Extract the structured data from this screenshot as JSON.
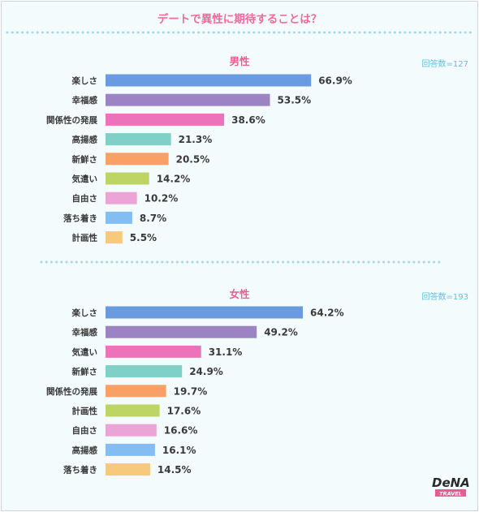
{
  "page_title": "デートで異性に期待することは？",
  "colors": {
    "title": "#f06a9a",
    "section_title": "#ee5d90",
    "respondents": "#5fc0e4",
    "dots": "#9fd9ee",
    "bar_palette": [
      "#6a9be0",
      "#9c84c4",
      "#ec72b9",
      "#7fd0c6",
      "#f8a065",
      "#bcd564",
      "#eca3d5",
      "#84bdf2",
      "#f7c97d"
    ]
  },
  "chart_data": [
    {
      "type": "bar",
      "orientation": "horizontal",
      "title": "男性",
      "respondents_label": "回答数=127",
      "unit": "%",
      "categories": [
        "楽しさ",
        "幸福感",
        "関係性の発展",
        "高揚感",
        "新鮮さ",
        "気遣い",
        "自由さ",
        "落ち着き",
        "計画性"
      ],
      "values": [
        66.9,
        53.5,
        38.6,
        21.3,
        20.5,
        14.2,
        10.2,
        8.7,
        5.5
      ],
      "value_labels": [
        "66.9%",
        "53.5%",
        "38.6%",
        "21.3%",
        "20.5%",
        "14.2%",
        "10.2%",
        "8.7%",
        "5.5%"
      ],
      "bar_colors": [
        "#6a9be0",
        "#9c84c4",
        "#ec72b9",
        "#7fd0c6",
        "#f8a065",
        "#bcd564",
        "#eca3d5",
        "#84bdf2",
        "#f7c97d"
      ],
      "grid": false,
      "legend": false
    },
    {
      "type": "bar",
      "orientation": "horizontal",
      "title": "女性",
      "respondents_label": "回答数=193",
      "unit": "%",
      "categories": [
        "楽しさ",
        "幸福感",
        "気遣い",
        "新鮮さ",
        "関係性の発展",
        "計画性",
        "自由さ",
        "高揚感",
        "落ち着き"
      ],
      "values": [
        64.2,
        49.2,
        31.1,
        24.9,
        19.7,
        17.6,
        16.6,
        16.1,
        14.5
      ],
      "value_labels": [
        "64.2%",
        "49.2%",
        "31.1%",
        "24.9%",
        "19.7%",
        "17.6%",
        "16.6%",
        "16.1%",
        "14.5%"
      ],
      "bar_colors": [
        "#6a9be0",
        "#9c84c4",
        "#ec72b9",
        "#7fd0c6",
        "#f8a065",
        "#bcd564",
        "#eca3d5",
        "#84bdf2",
        "#f7c97d"
      ],
      "grid": false,
      "legend": false
    }
  ],
  "logo": {
    "brand": "DeNA",
    "sub": "TRAVEL"
  }
}
